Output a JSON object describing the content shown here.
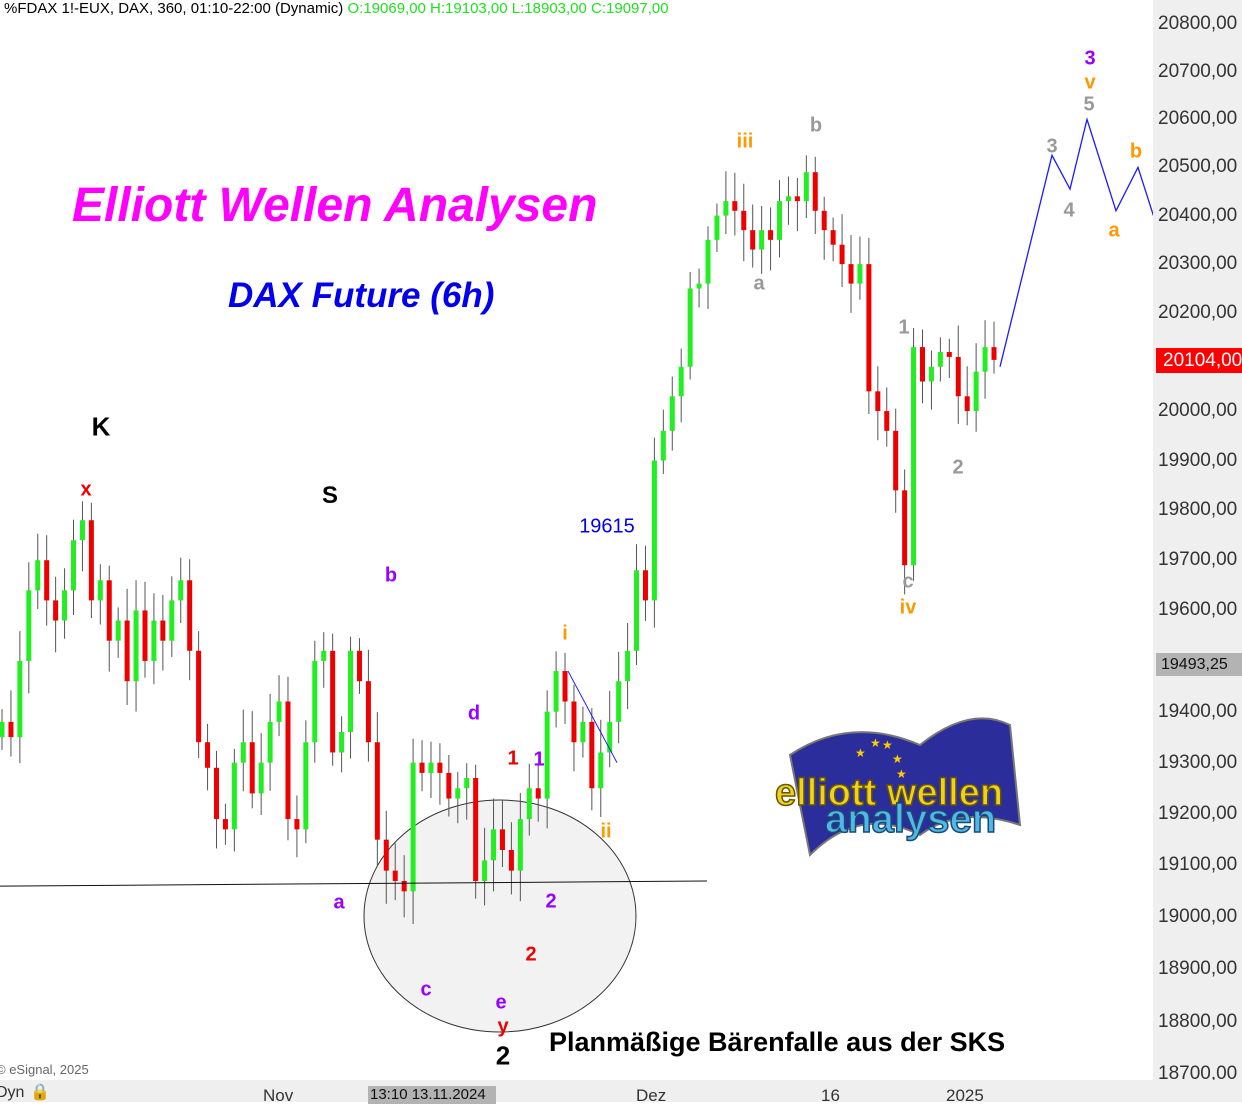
{
  "header": {
    "symbol_info": "%FDAX 1!-EUX, DAX, 360, 01:10-22:00 (Dynamic)",
    "ohlc": "O:19069,00 H:19103,00 L:18903,00 C:19097,00"
  },
  "title": "Elliott Wellen Analysen",
  "subtitle": "DAX Future (6h)",
  "note": "Planmäßige Bärenfalle aus der SKS",
  "copyright": "© eSignal, 2025",
  "logo_text": "elliott wellen analysen",
  "bottom_left": "Dyn",
  "colors": {
    "up": "#22ee22",
    "down": "#ee0000",
    "projection": "#1a1aff",
    "last_price_bg": "#ff0000",
    "title": "#ff00ff",
    "subtitle": "#0000ee"
  },
  "chart_data": {
    "type": "candlestick",
    "y_scale": "log",
    "ylim": [
      18700,
      20800
    ],
    "y_ticks": [
      "20800,00",
      "20700,00",
      "20600,00",
      "20500,00",
      "20400,00",
      "20300,00",
      "20200,00",
      "20000,00",
      "19900,00",
      "19800,00",
      "19700,00",
      "19600,00",
      "19400,00",
      "19300,00",
      "19200,00",
      "19100,00",
      "19000,00",
      "18900,00",
      "18800,00",
      "18700,00"
    ],
    "y_tick_values": [
      20800,
      20700,
      20600,
      20500,
      20400,
      20300,
      20200,
      20000,
      19900,
      19800,
      19700,
      19600,
      19400,
      19300,
      19200,
      19100,
      19000,
      18900,
      18800,
      18700
    ],
    "last_price": "20104,00",
    "crosshair_price": "19493,25",
    "crosshair_date": "13:10 13.11.2024",
    "x_ticks": [
      "Nov",
      "Dez",
      "16",
      "2025"
    ],
    "closes": [
      19380,
      19350,
      19500,
      19640,
      19700,
      19620,
      19580,
      19640,
      19740,
      19780,
      19620,
      19660,
      19540,
      19580,
      19460,
      19600,
      19500,
      19580,
      19540,
      19620,
      19660,
      19520,
      19340,
      19290,
      19190,
      19170,
      19300,
      19340,
      19240,
      19300,
      19380,
      19420,
      19190,
      19170,
      19340,
      19500,
      19520,
      19320,
      19360,
      19520,
      19460,
      19340,
      19150,
      19090,
      19070,
      19050,
      19300,
      19280,
      19300,
      19280,
      19230,
      19250,
      19270,
      19070,
      19110,
      19170,
      19130,
      19090,
      19190,
      19250,
      19230,
      19400,
      19480,
      19420,
      19340,
      19380,
      19250,
      19320,
      19380,
      19460,
      19520,
      19680,
      19620,
      19900,
      19960,
      20030,
      20090,
      20250,
      20260,
      20350,
      20400,
      20430,
      20410,
      20370,
      20330,
      20370,
      20350,
      20430,
      20440,
      20430,
      20490,
      20410,
      20370,
      20340,
      20300,
      20260,
      20300,
      20040,
      20000,
      19960,
      19840,
      19690,
      20130,
      20060,
      20090,
      20120,
      20110,
      20030,
      20000,
      20080,
      20130,
      20104
    ],
    "projection": [
      20090,
      20525,
      20455,
      20600,
      20410,
      20500,
      20390
    ],
    "support_line": [
      19060,
      19070
    ],
    "trendline_ii": [
      19480,
      19300
    ],
    "wave_labels": [
      {
        "text": "K",
        "color": "#000000"
      },
      {
        "text": "x",
        "color": "#ee0000"
      },
      {
        "text": "S",
        "color": "#000000"
      },
      {
        "text": "b",
        "color": "#9900ff"
      },
      {
        "text": "a",
        "color": "#9900ff"
      },
      {
        "text": "c",
        "color": "#9900ff"
      },
      {
        "text": "d",
        "color": "#9900ff"
      },
      {
        "text": "e",
        "color": "#9900ff"
      },
      {
        "text": "y",
        "color": "#ee0000"
      },
      {
        "text": "2",
        "color": "#000000"
      },
      {
        "text": "1",
        "color": "#ee0000"
      },
      {
        "text": "1",
        "color": "#9900ff"
      },
      {
        "text": "2",
        "color": "#9900ff"
      },
      {
        "text": "2",
        "color": "#ee0000"
      },
      {
        "text": "i",
        "color": "#ff9900"
      },
      {
        "text": "ii",
        "color": "#ff9900"
      },
      {
        "text": "19615",
        "color": "#0000ee"
      },
      {
        "text": "iii",
        "color": "#ff9900"
      },
      {
        "text": "b",
        "color": "#999999"
      },
      {
        "text": "a",
        "color": "#999999"
      },
      {
        "text": "1",
        "color": "#999999"
      },
      {
        "text": "2",
        "color": "#999999"
      },
      {
        "text": "c",
        "color": "#999999"
      },
      {
        "text": "iv",
        "color": "#ff9900"
      },
      {
        "text": "3",
        "color": "#999999"
      },
      {
        "text": "4",
        "color": "#999999"
      },
      {
        "text": "5",
        "color": "#999999"
      },
      {
        "text": "v",
        "color": "#ff9900"
      },
      {
        "text": "3",
        "color": "#9900ff"
      },
      {
        "text": "b",
        "color": "#ff9900"
      },
      {
        "text": "a",
        "color": "#ff9900"
      }
    ]
  }
}
